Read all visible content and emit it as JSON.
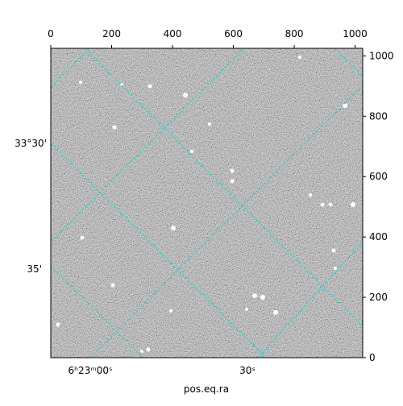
{
  "chart_data": {
    "type": "image",
    "xlabel": "pos.eq.ra",
    "xlim": [
      0,
      1025
    ],
    "ylim": [
      0,
      1025
    ],
    "xticks": [
      0,
      200,
      400,
      600,
      800,
      1000
    ],
    "yticks": [
      0,
      200,
      400,
      600,
      800,
      1000
    ],
    "ra_tick_labels": [
      "6ʰ23ᵐ00ˢ",
      "30ˢ"
    ],
    "dec_tick_labels": [
      "33°30'",
      "35'"
    ]
  }
}
